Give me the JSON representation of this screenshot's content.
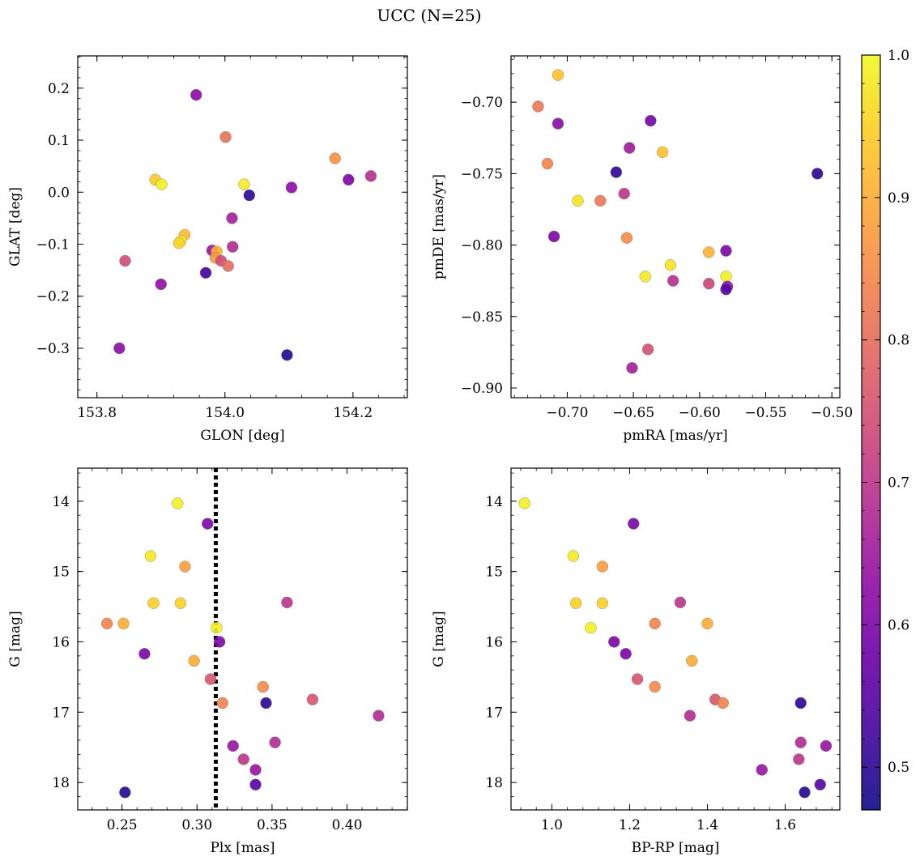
{
  "chart_data": {
    "title": "UCC (N=25)",
    "colorbar": {
      "colormap": "plasma",
      "range": [
        0.47,
        1.0
      ],
      "ticks": [
        "0.5",
        "0.6",
        "0.7",
        "0.8",
        "0.9",
        "1.0"
      ]
    },
    "panels": [
      {
        "type": "scatter",
        "xlabel": "GLON [deg]",
        "ylabel": "GLAT [deg]",
        "xlim": [
          153.77,
          154.285
        ],
        "ylim": [
          -0.395,
          0.262
        ],
        "y_inverted": false,
        "xticks": [
          "153.8",
          "154.0",
          "154.2"
        ],
        "yticks": [
          "−0.3",
          "−0.2",
          "−0.1",
          "0.0",
          "0.1",
          "0.2"
        ],
        "points": [
          {
            "x": 153.955,
            "y": 0.187,
            "c": 0.62
          },
          {
            "x": 154.001,
            "y": 0.106,
            "c": 0.81
          },
          {
            "x": 154.172,
            "y": 0.065,
            "c": 0.86
          },
          {
            "x": 154.228,
            "y": 0.031,
            "c": 0.69
          },
          {
            "x": 154.193,
            "y": 0.024,
            "c": 0.6
          },
          {
            "x": 153.891,
            "y": 0.024,
            "c": 0.94
          },
          {
            "x": 153.901,
            "y": 0.015,
            "c": 0.99
          },
          {
            "x": 154.03,
            "y": 0.015,
            "c": 0.98
          },
          {
            "x": 154.104,
            "y": 0.009,
            "c": 0.62
          },
          {
            "x": 154.038,
            "y": -0.006,
            "c": 0.5
          },
          {
            "x": 154.011,
            "y": -0.05,
            "c": 0.66
          },
          {
            "x": 153.937,
            "y": -0.082,
            "c": 0.92
          },
          {
            "x": 153.931,
            "y": -0.094,
            "c": 0.99
          },
          {
            "x": 153.928,
            "y": -0.098,
            "c": 0.95
          },
          {
            "x": 154.012,
            "y": -0.105,
            "c": 0.68
          },
          {
            "x": 153.98,
            "y": -0.112,
            "c": 0.64
          },
          {
            "x": 153.987,
            "y": -0.114,
            "c": 0.9
          },
          {
            "x": 153.985,
            "y": -0.126,
            "c": 0.87
          },
          {
            "x": 153.994,
            "y": -0.132,
            "c": 0.74
          },
          {
            "x": 153.844,
            "y": -0.132,
            "c": 0.74
          },
          {
            "x": 154.005,
            "y": -0.142,
            "c": 0.8
          },
          {
            "x": 153.97,
            "y": -0.155,
            "c": 0.52
          },
          {
            "x": 153.9,
            "y": -0.177,
            "c": 0.63
          },
          {
            "x": 153.835,
            "y": -0.3,
            "c": 0.62
          },
          {
            "x": 154.097,
            "y": -0.313,
            "c": 0.49
          }
        ]
      },
      {
        "type": "scatter",
        "xlabel": "pmRA [mas/yr]",
        "ylabel": "pmDE [mas/yr]",
        "xlim": [
          -0.7425,
          -0.494
        ],
        "ylim": [
          -0.9068,
          -0.6676
        ],
        "y_inverted": false,
        "xticks": [
          "−0.70",
          "−0.65",
          "−0.60",
          "−0.55",
          "−0.50"
        ],
        "yticks": [
          "−0.90",
          "−0.85",
          "−0.80",
          "−0.75",
          "−0.70"
        ],
        "points": [
          {
            "x": -0.707,
            "y": -0.681,
            "c": 0.93
          },
          {
            "x": -0.722,
            "y": -0.703,
            "c": 0.82
          },
          {
            "x": -0.707,
            "y": -0.715,
            "c": 0.62
          },
          {
            "x": -0.637,
            "y": -0.713,
            "c": 0.59
          },
          {
            "x": -0.653,
            "y": -0.732,
            "c": 0.65
          },
          {
            "x": -0.628,
            "y": -0.735,
            "c": 0.93
          },
          {
            "x": -0.715,
            "y": -0.743,
            "c": 0.84
          },
          {
            "x": -0.663,
            "y": -0.749,
            "c": 0.5
          },
          {
            "x": -0.511,
            "y": -0.75,
            "c": 0.5
          },
          {
            "x": -0.657,
            "y": -0.764,
            "c": 0.7
          },
          {
            "x": -0.692,
            "y": -0.769,
            "c": 0.97
          },
          {
            "x": -0.675,
            "y": -0.769,
            "c": 0.82
          },
          {
            "x": -0.71,
            "y": -0.794,
            "c": 0.6
          },
          {
            "x": -0.655,
            "y": -0.795,
            "c": 0.85
          },
          {
            "x": -0.593,
            "y": -0.805,
            "c": 0.91
          },
          {
            "x": -0.58,
            "y": -0.804,
            "c": 0.6
          },
          {
            "x": -0.622,
            "y": -0.814,
            "c": 0.97
          },
          {
            "x": -0.641,
            "y": -0.822,
            "c": 0.98
          },
          {
            "x": -0.58,
            "y": -0.822,
            "c": 0.99
          },
          {
            "x": -0.62,
            "y": -0.825,
            "c": 0.69
          },
          {
            "x": -0.593,
            "y": -0.827,
            "c": 0.73
          },
          {
            "x": -0.579,
            "y": -0.829,
            "c": 0.63
          },
          {
            "x": -0.58,
            "y": -0.831,
            "c": 0.55
          },
          {
            "x": -0.639,
            "y": -0.873,
            "c": 0.75
          },
          {
            "x": -0.651,
            "y": -0.886,
            "c": 0.66
          }
        ]
      },
      {
        "type": "scatter",
        "xlabel": "Plx [mas]",
        "ylabel": "G [mag]",
        "xlim": [
          0.2205,
          0.4402
        ],
        "ylim": [
          13.53,
          18.39
        ],
        "y_inverted": true,
        "xticks": [
          "0.25",
          "0.30",
          "0.35",
          "0.40"
        ],
        "yticks": [
          "14",
          "15",
          "16",
          "17",
          "18"
        ],
        "vline": {
          "x": 0.3125,
          "style": "dotted"
        },
        "points": [
          {
            "x": 0.287,
            "y": 14.03,
            "c": 0.99
          },
          {
            "x": 0.307,
            "y": 14.32,
            "c": 0.6
          },
          {
            "x": 0.269,
            "y": 14.78,
            "c": 0.98
          },
          {
            "x": 0.292,
            "y": 14.93,
            "c": 0.88
          },
          {
            "x": 0.271,
            "y": 15.45,
            "c": 0.95
          },
          {
            "x": 0.289,
            "y": 15.45,
            "c": 0.95
          },
          {
            "x": 0.36,
            "y": 15.44,
            "c": 0.7
          },
          {
            "x": 0.24,
            "y": 15.74,
            "c": 0.84
          },
          {
            "x": 0.251,
            "y": 15.74,
            "c": 0.9
          },
          {
            "x": 0.313,
            "y": 15.8,
            "c": 0.99
          },
          {
            "x": 0.315,
            "y": 16.0,
            "c": 0.6
          },
          {
            "x": 0.265,
            "y": 16.17,
            "c": 0.6
          },
          {
            "x": 0.298,
            "y": 16.27,
            "c": 0.9
          },
          {
            "x": 0.309,
            "y": 16.53,
            "c": 0.76
          },
          {
            "x": 0.344,
            "y": 16.64,
            "c": 0.85
          },
          {
            "x": 0.377,
            "y": 16.82,
            "c": 0.76
          },
          {
            "x": 0.317,
            "y": 16.87,
            "c": 0.84
          },
          {
            "x": 0.346,
            "y": 16.87,
            "c": 0.5
          },
          {
            "x": 0.421,
            "y": 17.05,
            "c": 0.68
          },
          {
            "x": 0.352,
            "y": 17.43,
            "c": 0.68
          },
          {
            "x": 0.324,
            "y": 17.48,
            "c": 0.64
          },
          {
            "x": 0.331,
            "y": 17.67,
            "c": 0.7
          },
          {
            "x": 0.339,
            "y": 17.82,
            "c": 0.64
          },
          {
            "x": 0.339,
            "y": 18.03,
            "c": 0.55
          },
          {
            "x": 0.252,
            "y": 18.14,
            "c": 0.49
          }
        ]
      },
      {
        "type": "scatter",
        "xlabel": "BP-RP [mag]",
        "ylabel": "G [mag]",
        "xlim": [
          0.895,
          1.7405
        ],
        "ylim": [
          13.53,
          18.39
        ],
        "y_inverted": true,
        "xticks": [
          "1.0",
          "1.2",
          "1.4",
          "1.6"
        ],
        "yticks": [
          "14",
          "15",
          "16",
          "17",
          "18"
        ],
        "points": [
          {
            "x": 0.93,
            "y": 14.03,
            "c": 0.99
          },
          {
            "x": 1.21,
            "y": 14.32,
            "c": 0.6
          },
          {
            "x": 1.055,
            "y": 14.78,
            "c": 0.98
          },
          {
            "x": 1.13,
            "y": 14.93,
            "c": 0.88
          },
          {
            "x": 1.062,
            "y": 15.45,
            "c": 0.95
          },
          {
            "x": 1.13,
            "y": 15.45,
            "c": 0.95
          },
          {
            "x": 1.33,
            "y": 15.44,
            "c": 0.7
          },
          {
            "x": 1.265,
            "y": 15.74,
            "c": 0.84
          },
          {
            "x": 1.4,
            "y": 15.74,
            "c": 0.9
          },
          {
            "x": 1.1,
            "y": 15.8,
            "c": 0.99
          },
          {
            "x": 1.16,
            "y": 16.0,
            "c": 0.6
          },
          {
            "x": 1.19,
            "y": 16.17,
            "c": 0.6
          },
          {
            "x": 1.36,
            "y": 16.27,
            "c": 0.9
          },
          {
            "x": 1.22,
            "y": 16.53,
            "c": 0.76
          },
          {
            "x": 1.265,
            "y": 16.64,
            "c": 0.85
          },
          {
            "x": 1.42,
            "y": 16.82,
            "c": 0.76
          },
          {
            "x": 1.44,
            "y": 16.87,
            "c": 0.84
          },
          {
            "x": 1.64,
            "y": 16.87,
            "c": 0.5
          },
          {
            "x": 1.355,
            "y": 17.05,
            "c": 0.68
          },
          {
            "x": 1.64,
            "y": 17.43,
            "c": 0.68
          },
          {
            "x": 1.705,
            "y": 17.48,
            "c": 0.64
          },
          {
            "x": 1.635,
            "y": 17.67,
            "c": 0.7
          },
          {
            "x": 1.54,
            "y": 17.82,
            "c": 0.64
          },
          {
            "x": 1.69,
            "y": 18.03,
            "c": 0.55
          },
          {
            "x": 1.65,
            "y": 18.14,
            "c": 0.49
          }
        ]
      }
    ]
  }
}
